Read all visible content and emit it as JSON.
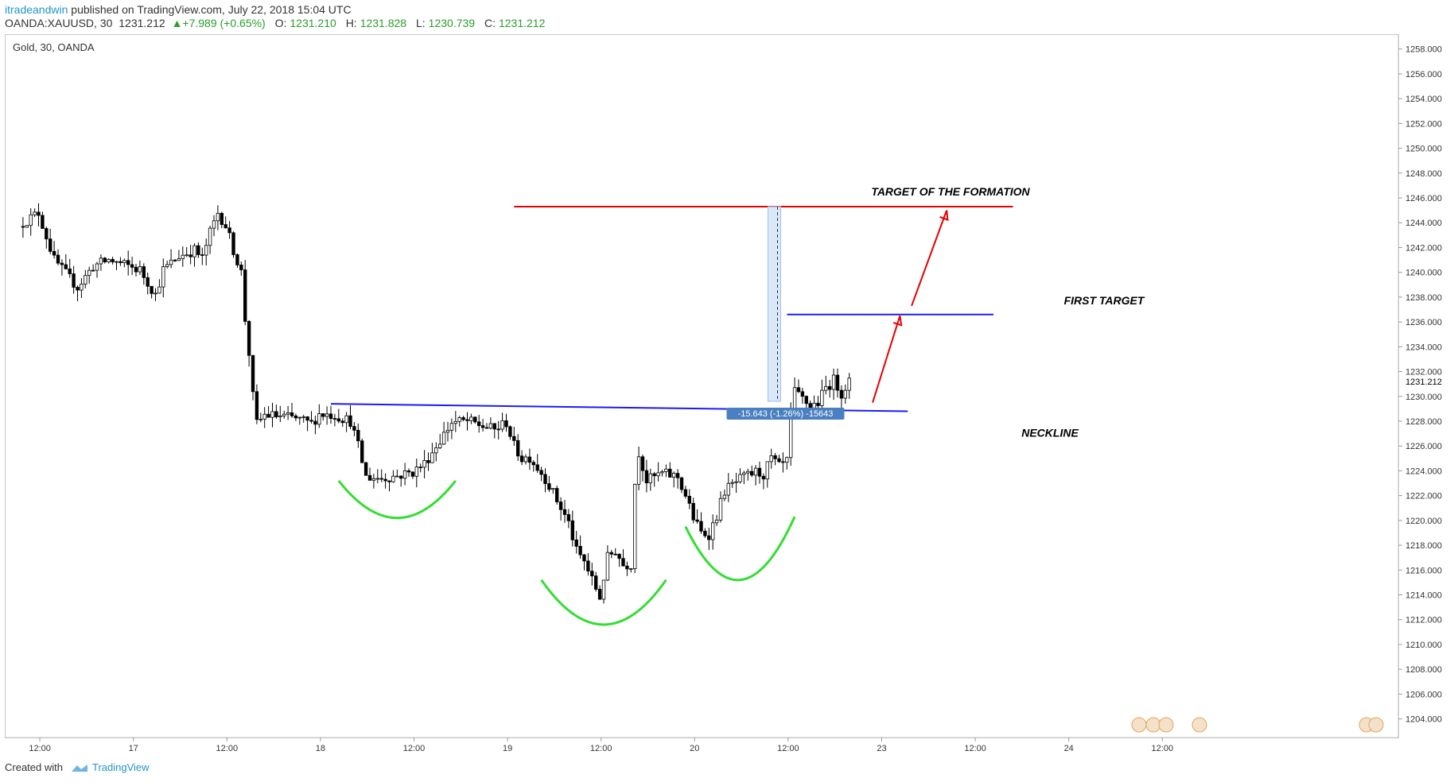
{
  "header": {
    "publisher": "itradeandwin",
    "published_text": "published on TradingView.com, July 22, 2018 15:04 UTC",
    "symbol": "OANDA:XAUUSD, 30",
    "last": "1231.212",
    "change": "+7.989 (+0.65%)",
    "open_label": "O:",
    "open": "1231.210",
    "high_label": "H:",
    "high": "1231.828",
    "low_label": "L:",
    "low": "1230.739",
    "close_label": "C:",
    "close": "1231.212"
  },
  "footer": {
    "created_with": "Created with",
    "brand": "TradingView"
  },
  "colors": {
    "candle_up": "#ffffff",
    "candle_down": "#000000",
    "neckline": "#1a1aff",
    "target": "#e60000",
    "arc": "#33dd33",
    "arrow": "#e60000",
    "measure": "#4a7fc1"
  },
  "chart_data": {
    "type": "candlestick",
    "title": "Gold, 30, OANDA",
    "ylim": [
      1202.5,
      1259.2
    ],
    "y_ticks": [
      "1258.000",
      "1256.000",
      "1254.000",
      "1252.000",
      "1250.000",
      "1248.000",
      "1246.000",
      "1244.000",
      "1242.000",
      "1240.000",
      "1238.000",
      "1236.000",
      "1234.000",
      "1232.000",
      "1230.000",
      "1228.000",
      "1226.000",
      "1224.000",
      "1222.000",
      "1220.000",
      "1218.000",
      "1216.000",
      "1214.000",
      "1212.000",
      "1210.000",
      "1208.000",
      "1206.000",
      "1204.000"
    ],
    "y_tick_values": [
      1258,
      1256,
      1254,
      1252,
      1250,
      1248,
      1246,
      1244,
      1242,
      1240,
      1238,
      1236,
      1234,
      1232,
      1230,
      1228,
      1226,
      1224,
      1222,
      1220,
      1218,
      1216,
      1214,
      1212,
      1210,
      1208,
      1206,
      1204
    ],
    "last_price": "1231.212",
    "last_price_value": 1231.212,
    "x_ticks": [
      "12:00",
      "17",
      "12:00",
      "18",
      "12:00",
      "19",
      "12:00",
      "20",
      "12:00",
      "23",
      "12:00",
      "24",
      "12:00"
    ],
    "x_range_bars": [
      0,
      312
    ],
    "x_tick_bars": [
      4,
      28,
      52,
      76,
      100,
      124,
      148,
      172,
      196,
      220,
      244,
      268,
      292
    ],
    "bars_window": [
      0,
      212
    ],
    "anchors": [
      [
        0,
        1244.0
      ],
      [
        4,
        1244.8
      ],
      [
        8,
        1241.0
      ],
      [
        12,
        1239.5
      ],
      [
        14,
        1238.8
      ],
      [
        18,
        1240.5
      ],
      [
        22,
        1241.0
      ],
      [
        26,
        1240.6
      ],
      [
        30,
        1240.2
      ],
      [
        32,
        1239.2
      ],
      [
        34,
        1238.2
      ],
      [
        36,
        1240.2
      ],
      [
        40,
        1241.3
      ],
      [
        44,
        1241.8
      ],
      [
        46,
        1241.1
      ],
      [
        48,
        1243.2
      ],
      [
        50,
        1244.8
      ],
      [
        52,
        1243.8
      ],
      [
        54,
        1241.8
      ],
      [
        56,
        1240.0
      ],
      [
        57,
        1236.2
      ],
      [
        58,
        1233.5
      ],
      [
        59,
        1230.0
      ],
      [
        60,
        1227.8
      ],
      [
        62,
        1228.5
      ],
      [
        66,
        1228.4
      ],
      [
        70,
        1228.2
      ],
      [
        74,
        1227.8
      ],
      [
        76,
        1228.6
      ],
      [
        80,
        1228.5
      ],
      [
        84,
        1228.0
      ],
      [
        86,
        1226.0
      ],
      [
        88,
        1223.5
      ],
      [
        92,
        1223.4
      ],
      [
        96,
        1223.6
      ],
      [
        100,
        1223.9
      ],
      [
        103,
        1224.6
      ],
      [
        106,
        1226.0
      ],
      [
        110,
        1227.9
      ],
      [
        114,
        1228.0
      ],
      [
        118,
        1227.6
      ],
      [
        121,
        1227.3
      ],
      [
        124,
        1227.9
      ],
      [
        126,
        1226.0
      ],
      [
        128,
        1225.0
      ],
      [
        130,
        1225.1
      ],
      [
        134,
        1223.4
      ],
      [
        138,
        1221.0
      ],
      [
        140,
        1219.8
      ],
      [
        142,
        1217.5
      ],
      [
        144,
        1216.7
      ],
      [
        146,
        1215.2
      ],
      [
        148,
        1213.8
      ],
      [
        150,
        1217.0
      ],
      [
        152,
        1217.6
      ],
      [
        154,
        1216.4
      ],
      [
        156,
        1216.5
      ],
      [
        157,
        1223.0
      ],
      [
        158,
        1225.5
      ],
      [
        160,
        1223.2
      ],
      [
        164,
        1223.8
      ],
      [
        168,
        1223.5
      ],
      [
        170,
        1222.0
      ],
      [
        172,
        1220.2
      ],
      [
        174,
        1219.0
      ],
      [
        176,
        1218.9
      ],
      [
        178,
        1220.4
      ],
      [
        180,
        1222.4
      ],
      [
        184,
        1223.3
      ],
      [
        188,
        1223.9
      ],
      [
        190,
        1223.7
      ],
      [
        192,
        1225.0
      ],
      [
        194,
        1224.3
      ],
      [
        196,
        1224.7
      ],
      [
        197,
        1228.8
      ],
      [
        198,
        1230.3
      ],
      [
        200,
        1229.8
      ],
      [
        202,
        1229.2
      ],
      [
        204,
        1229.5
      ],
      [
        206,
        1230.7
      ],
      [
        208,
        1231.3
      ],
      [
        210,
        1230.3
      ],
      [
        212,
        1231.2
      ]
    ],
    "annotations": {
      "target_label": "TARGET OF THE FORMATION",
      "target_level": 1245.3,
      "target_range_bars": [
        126,
        254
      ],
      "first_target_label": "FIRST TARGET",
      "first_target_level": 1236.6,
      "first_target_range_bars": [
        194,
        249
      ],
      "neckline_label": "NECKLINE",
      "neckline_start": [
        79,
        1229.4
      ],
      "neckline_end": [
        227,
        1228.8
      ],
      "measure_text": "-15.643 (-1.26%) -15643",
      "measure_top": 1245.3,
      "measure_bottom": 1229.6,
      "measure_bar": 194,
      "arrow_1_from": [
        218,
        1229.5
      ],
      "arrow_1_to": [
        225,
        1236.5
      ],
      "arrow_2_from": [
        228,
        1237.3
      ],
      "arrow_2_to": [
        237,
        1245.0
      ],
      "arc_left": {
        "from": [
          81,
          1223.2
        ],
        "to": [
          111,
          1223.2
        ],
        "bottom": 1220.2
      },
      "arc_head": {
        "from": [
          133,
          1215.2
        ],
        "to": [
          165,
          1215.2
        ],
        "bottom": 1211.6
      },
      "arc_right": {
        "from": [
          170,
          1219.5
        ],
        "to": [
          198,
          1220.3
        ],
        "bottom": 1215.2
      }
    }
  }
}
